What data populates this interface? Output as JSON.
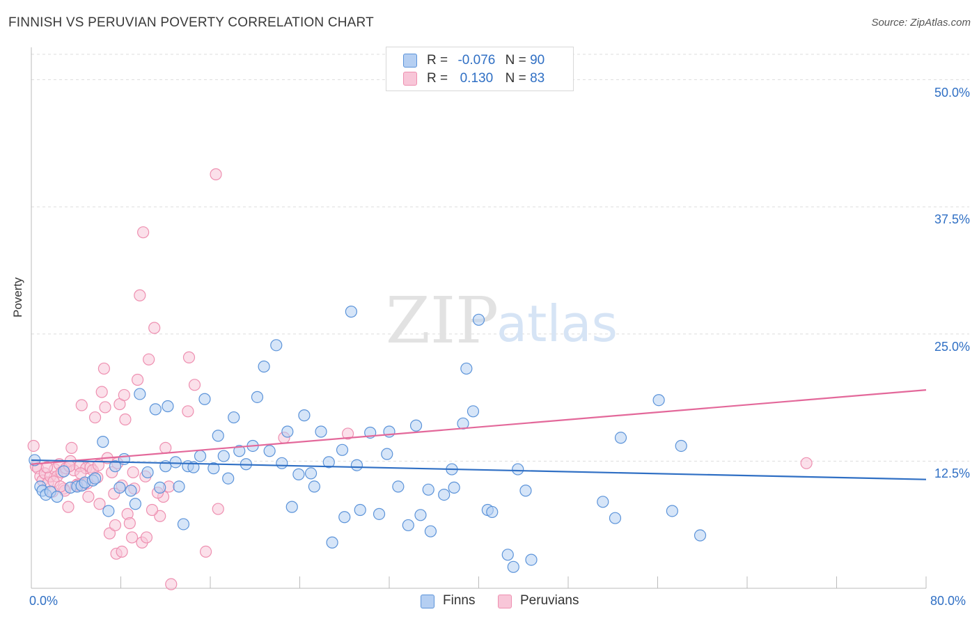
{
  "title": "FINNISH VS PERUVIAN POVERTY CORRELATION CHART",
  "source": "Source: ZipAtlas.com",
  "watermark": {
    "zip": "ZIP",
    "atlas": "atlas"
  },
  "legend": {
    "finns": {
      "r_label": "R =",
      "r_value": "-0.076",
      "n_label": "N =",
      "n_value": "90"
    },
    "peruvians": {
      "r_label": "R =",
      "r_value": "0.130",
      "n_label": "N =",
      "n_value": "83"
    }
  },
  "colors": {
    "finns": "#5b93d9",
    "finns_fill": "#b5cff2",
    "finns_line": "#2f6fc4",
    "peruvians": "#ee8fb0",
    "peruvians_fill": "#f8c6d8",
    "peruvians_line": "#e3689a",
    "grid": "#dddddd",
    "axis_text": "#2f6fc4"
  },
  "chart_data": {
    "type": "scatter",
    "title": "FINNISH VS PERUVIAN POVERTY CORRELATION CHART",
    "xlabel": "",
    "ylabel": "Poverty",
    "xlim": [
      0,
      80
    ],
    "ylim": [
      0,
      52.5
    ],
    "x_tick_labels": [
      "0.0%",
      "80.0%"
    ],
    "y_tick_labels": [
      "12.5%",
      "25.0%",
      "37.5%",
      "50.0%"
    ],
    "y_ticks": [
      12.5,
      25.0,
      37.5,
      50.0
    ],
    "grid": true,
    "legend_position": "top-center",
    "series": [
      {
        "name": "Finns",
        "r": -0.076,
        "n": 90,
        "trend": {
          "x": [
            0,
            80
          ],
          "y": [
            12.6,
            10.7
          ]
        },
        "points": [
          [
            0.3,
            12.6
          ],
          [
            0.8,
            10.0
          ],
          [
            1.0,
            9.6
          ],
          [
            1.3,
            9.2
          ],
          [
            1.7,
            9.5
          ],
          [
            2.3,
            9.0
          ],
          [
            2.9,
            11.5
          ],
          [
            3.5,
            9.9
          ],
          [
            4.1,
            10.0
          ],
          [
            4.5,
            10.1
          ],
          [
            4.8,
            10.4
          ],
          [
            5.5,
            10.6
          ],
          [
            5.7,
            10.8
          ],
          [
            6.4,
            14.4
          ],
          [
            6.9,
            7.6
          ],
          [
            7.5,
            12.0
          ],
          [
            7.9,
            9.9
          ],
          [
            8.3,
            12.7
          ],
          [
            8.9,
            9.6
          ],
          [
            9.3,
            8.3
          ],
          [
            9.7,
            19.1
          ],
          [
            10.4,
            11.4
          ],
          [
            11.1,
            17.6
          ],
          [
            11.5,
            9.9
          ],
          [
            12.0,
            12.0
          ],
          [
            12.2,
            17.9
          ],
          [
            12.9,
            12.4
          ],
          [
            13.2,
            10.0
          ],
          [
            13.6,
            6.3
          ],
          [
            14.0,
            12.0
          ],
          [
            14.5,
            11.9
          ],
          [
            15.1,
            13.0
          ],
          [
            15.5,
            18.6
          ],
          [
            16.3,
            11.8
          ],
          [
            16.7,
            15.0
          ],
          [
            17.2,
            13.0
          ],
          [
            17.6,
            10.8
          ],
          [
            18.1,
            16.8
          ],
          [
            18.6,
            13.5
          ],
          [
            19.2,
            12.2
          ],
          [
            19.8,
            14.0
          ],
          [
            20.2,
            18.8
          ],
          [
            20.8,
            21.8
          ],
          [
            21.3,
            13.5
          ],
          [
            21.9,
            23.9
          ],
          [
            22.4,
            12.3
          ],
          [
            22.9,
            15.4
          ],
          [
            23.3,
            8.0
          ],
          [
            23.9,
            11.2
          ],
          [
            24.4,
            17.0
          ],
          [
            25.0,
            11.3
          ],
          [
            25.3,
            10.0
          ],
          [
            25.9,
            15.4
          ],
          [
            26.6,
            12.4
          ],
          [
            26.9,
            4.5
          ],
          [
            27.8,
            13.6
          ],
          [
            28.0,
            7.0
          ],
          [
            28.6,
            27.2
          ],
          [
            29.1,
            12.1
          ],
          [
            29.4,
            7.7
          ],
          [
            30.3,
            15.3
          ],
          [
            31.1,
            7.3
          ],
          [
            31.8,
            13.2
          ],
          [
            32.0,
            15.4
          ],
          [
            32.8,
            10.0
          ],
          [
            33.7,
            6.2
          ],
          [
            34.4,
            16.0
          ],
          [
            34.8,
            7.2
          ],
          [
            35.5,
            9.7
          ],
          [
            35.7,
            5.6
          ],
          [
            36.9,
            9.2
          ],
          [
            37.6,
            11.7
          ],
          [
            37.8,
            9.9
          ],
          [
            38.6,
            16.2
          ],
          [
            38.9,
            21.6
          ],
          [
            39.5,
            17.4
          ],
          [
            40.0,
            26.4
          ],
          [
            40.8,
            7.7
          ],
          [
            41.2,
            7.5
          ],
          [
            42.6,
            3.3
          ],
          [
            43.1,
            2.1
          ],
          [
            43.5,
            11.7
          ],
          [
            44.2,
            9.6
          ],
          [
            44.7,
            2.8
          ],
          [
            51.1,
            8.5
          ],
          [
            52.2,
            6.9
          ],
          [
            52.7,
            14.8
          ],
          [
            56.1,
            18.5
          ],
          [
            57.3,
            7.6
          ],
          [
            58.1,
            14.0
          ],
          [
            59.8,
            5.2
          ]
        ]
      },
      {
        "name": "Peruvians",
        "r": 0.13,
        "n": 83,
        "trend": {
          "x": [
            0,
            80
          ],
          "y": [
            12.2,
            19.5
          ]
        },
        "points": [
          [
            0.2,
            14.0
          ],
          [
            0.4,
            12.0
          ],
          [
            0.6,
            11.8
          ],
          [
            0.8,
            11.0
          ],
          [
            1.0,
            10.6
          ],
          [
            1.2,
            11.3
          ],
          [
            1.5,
            10.4
          ],
          [
            1.7,
            11.0
          ],
          [
            1.9,
            9.5
          ],
          [
            2.1,
            11.7
          ],
          [
            2.3,
            11.0
          ],
          [
            2.5,
            12.2
          ],
          [
            2.7,
            11.4
          ],
          [
            2.9,
            9.8
          ],
          [
            3.1,
            11.8
          ],
          [
            3.3,
            8.0
          ],
          [
            3.5,
            12.5
          ],
          [
            3.6,
            13.8
          ],
          [
            3.8,
            11.6
          ],
          [
            4.1,
            10.2
          ],
          [
            4.3,
            12.0
          ],
          [
            4.5,
            18.0
          ],
          [
            4.7,
            10.2
          ],
          [
            4.9,
            11.8
          ],
          [
            5.1,
            9.0
          ],
          [
            5.3,
            11.9
          ],
          [
            5.5,
            11.6
          ],
          [
            5.7,
            16.8
          ],
          [
            5.9,
            10.9
          ],
          [
            6.1,
            8.3
          ],
          [
            6.3,
            19.3
          ],
          [
            6.5,
            21.6
          ],
          [
            6.6,
            17.8
          ],
          [
            6.8,
            12.8
          ],
          [
            7.0,
            5.4
          ],
          [
            7.2,
            11.4
          ],
          [
            7.4,
            9.3
          ],
          [
            7.5,
            6.2
          ],
          [
            7.7,
            12.3
          ],
          [
            7.9,
            18.1
          ],
          [
            8.1,
            10.1
          ],
          [
            8.3,
            19.0
          ],
          [
            8.4,
            16.6
          ],
          [
            8.6,
            7.3
          ],
          [
            8.8,
            6.4
          ],
          [
            9.0,
            5.0
          ],
          [
            9.2,
            9.8
          ],
          [
            9.5,
            20.5
          ],
          [
            9.7,
            28.8
          ],
          [
            9.9,
            4.5
          ],
          [
            10.0,
            35.0
          ],
          [
            10.2,
            11.0
          ],
          [
            10.3,
            5.0
          ],
          [
            10.5,
            22.5
          ],
          [
            11.0,
            25.6
          ],
          [
            11.5,
            7.1
          ],
          [
            11.8,
            9.0
          ],
          [
            12.0,
            13.8
          ],
          [
            12.3,
            10.0
          ],
          [
            12.5,
            0.4
          ],
          [
            14.0,
            17.4
          ],
          [
            14.1,
            22.7
          ],
          [
            14.6,
            20.0
          ],
          [
            15.6,
            3.6
          ],
          [
            16.5,
            40.7
          ],
          [
            16.7,
            7.8
          ],
          [
            22.6,
            14.8
          ],
          [
            28.3,
            15.2
          ],
          [
            69.3,
            12.3
          ],
          [
            2.0,
            10.5
          ],
          [
            3.0,
            9.6
          ],
          [
            4.0,
            10.1
          ],
          [
            5.0,
            10.3
          ],
          [
            6.0,
            12.1
          ],
          [
            7.6,
            3.4
          ],
          [
            8.1,
            3.6
          ],
          [
            9.1,
            11.4
          ],
          [
            10.8,
            7.7
          ],
          [
            11.3,
            9.4
          ],
          [
            1.4,
            11.9
          ],
          [
            2.6,
            10.0
          ],
          [
            3.4,
            12.0
          ],
          [
            4.4,
            11.3
          ]
        ]
      }
    ]
  },
  "bottom_legend": {
    "finns": "Finns",
    "peruvians": "Peruvians"
  }
}
